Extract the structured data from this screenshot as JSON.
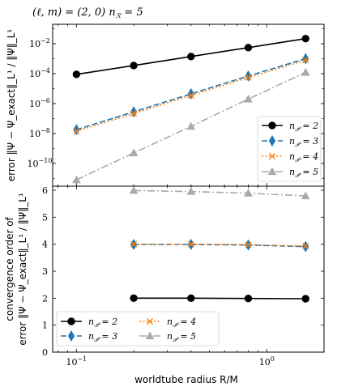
{
  "title": "(ℓ, m) = (2, 0)   n_R = 5",
  "x_label": "worldtube radius R/M",
  "chart_data": [
    {
      "type": "line",
      "panel": "top",
      "ylabel": "error ‖Ψ − Ψ_exact‖_L¹ / ‖Ψ‖_L¹",
      "xscale": "log",
      "yscale": "log",
      "xlim": [
        0.075,
        2.0
      ],
      "ylim": [
        3e-12,
        0.2
      ],
      "yticks": [
        {
          "value": 1e-10,
          "label": "10^-10"
        },
        {
          "value": 1e-08,
          "label": "10^-8"
        },
        {
          "value": 1e-06,
          "label": "10^-6"
        },
        {
          "value": 0.0001,
          "label": "10^-4"
        },
        {
          "value": 0.01,
          "label": "10^-2"
        }
      ],
      "legend_placement": "lower right",
      "series": [
        {
          "name": "n_P = 2",
          "color": "#000000",
          "dash": "solid",
          "marker": "circle",
          "x": [
            0.1,
            0.2,
            0.4,
            0.8,
            1.6
          ],
          "y": [
            9e-05,
            0.00035,
            0.0014,
            0.0055,
            0.022
          ]
        },
        {
          "name": "n_P = 3",
          "color": "#1f77b4",
          "dash": "dashed",
          "marker": "diamond",
          "x": [
            0.1,
            0.2,
            0.4,
            0.8,
            1.6
          ],
          "y": [
            1.8e-08,
            2.8e-07,
            4.5e-06,
            7e-05,
            0.001
          ]
        },
        {
          "name": "n_P = 4",
          "color": "#ff7f0e",
          "dash": "dotted",
          "marker": "x",
          "x": [
            0.1,
            0.2,
            0.4,
            0.8,
            1.6
          ],
          "y": [
            1.4e-08,
            2.2e-07,
            3.5e-06,
            5.5e-05,
            0.0008
          ]
        },
        {
          "name": "n_P = 5",
          "color": "#aaaaaa",
          "dash": "dashdot",
          "marker": "triangle",
          "x": [
            0.1,
            0.2,
            0.4,
            0.8,
            1.6
          ],
          "y": [
            8e-12,
            5e-10,
            3e-08,
            2e-06,
            0.00012
          ]
        }
      ]
    },
    {
      "type": "line",
      "panel": "bottom",
      "ylabel_line1": "convergence order of",
      "ylabel_line2": "error ‖Ψ − Ψ_exact‖_L¹ / ‖Ψ‖_L¹",
      "xscale": "log",
      "yscale": "linear",
      "xlim": [
        0.075,
        2.0
      ],
      "ylim": [
        0,
        6.15
      ],
      "yticks": [
        0,
        1,
        2,
        3,
        4,
        5,
        6
      ],
      "xticks": [
        {
          "value": 0.1,
          "label": "10^-1"
        },
        {
          "value": 1,
          "label": "10^0"
        }
      ],
      "legend_placement": "lower left",
      "series": [
        {
          "name": "n_P = 2",
          "color": "#000000",
          "dash": "solid",
          "marker": "circle",
          "x": [
            0.2,
            0.4,
            0.8,
            1.6
          ],
          "y": [
            2.0,
            2.0,
            1.99,
            1.98
          ]
        },
        {
          "name": "n_P = 3",
          "color": "#1f77b4",
          "dash": "dashed",
          "marker": "diamond",
          "x": [
            0.2,
            0.4,
            0.8,
            1.6
          ],
          "y": [
            3.99,
            3.99,
            3.97,
            3.91
          ]
        },
        {
          "name": "n_P = 4",
          "color": "#ff7f0e",
          "dash": "dotted",
          "marker": "x",
          "x": [
            0.2,
            0.4,
            0.8,
            1.6
          ],
          "y": [
            4.0,
            4.0,
            3.98,
            3.93
          ]
        },
        {
          "name": "n_P = 5",
          "color": "#aaaaaa",
          "dash": "dashdot",
          "marker": "triangle",
          "x": [
            0.2,
            0.4,
            0.8,
            1.6
          ],
          "y": [
            5.99,
            5.95,
            5.89,
            5.79
          ]
        }
      ]
    }
  ]
}
